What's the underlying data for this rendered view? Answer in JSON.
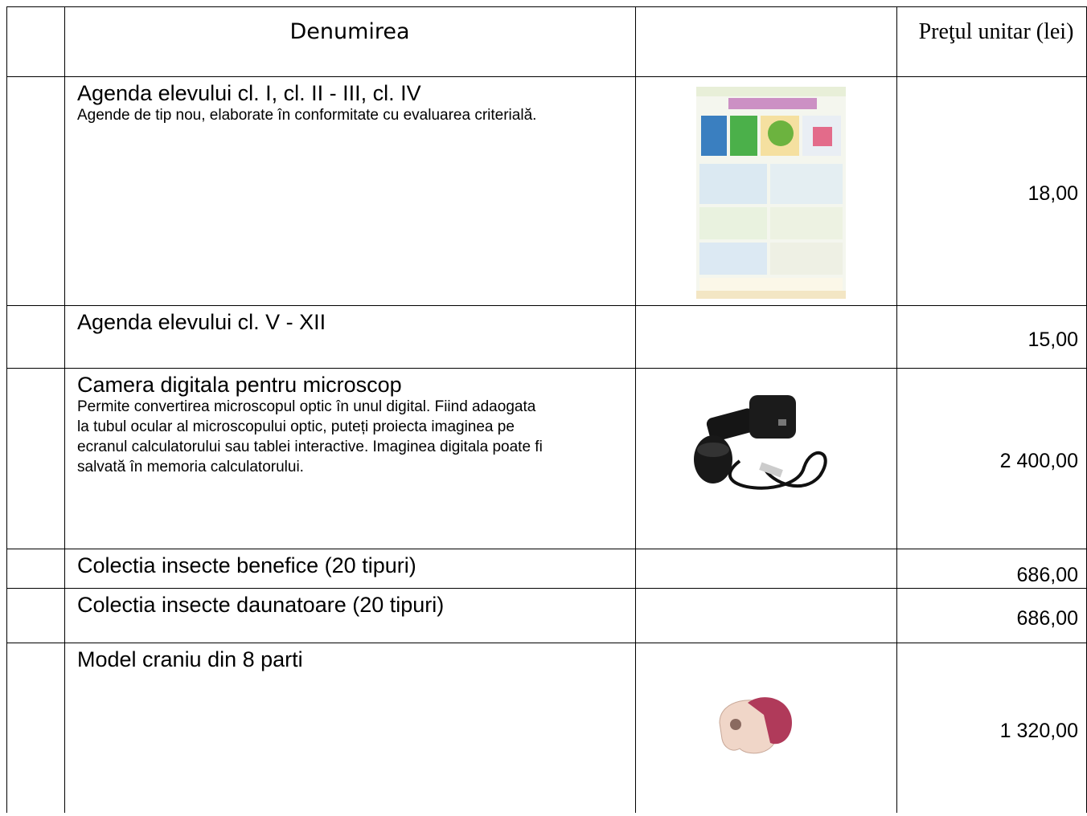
{
  "table": {
    "header": {
      "name": "Denumirea",
      "price": "Preţul unitar (lei)"
    },
    "rows": [
      {
        "title": "Agenda elevului cl. I, cl. II - III, cl. IV",
        "description": "Agende de tip nou, elaborate în conformitate cu evaluarea criterială.",
        "price": "18,00"
      },
      {
        "title": "Agenda elevului cl. V - XII",
        "price": "15,00"
      },
      {
        "title": "Camera digitala pentru microscop",
        "description": "Permite convertirea microscopul optic în unul digital. Fiind adaogata la tubul ocular al microscopului optic, puteți proiecta imaginea pe ecranul calculatorului sau tablei interactive. Imaginea digitala poate fi salvată în memoria calculatorului.",
        "price": "2 400,00"
      },
      {
        "title": "Colectia insecte benefice  (20 tipuri)",
        "price": "686,00"
      },
      {
        "title": "Colectia insecte daunatoare (20 tipuri)",
        "price": "686,00"
      },
      {
        "title": "Model craniu din 8 parti",
        "price": "1 320,00"
      }
    ]
  }
}
